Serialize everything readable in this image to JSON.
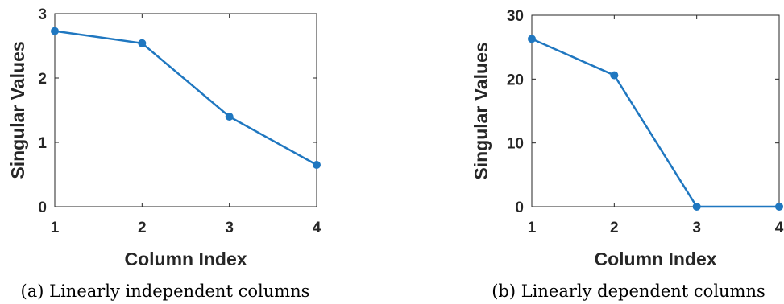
{
  "chart_data": [
    {
      "type": "line",
      "caption": "(a) Linearly independent columns",
      "xlabel": "Column Index",
      "ylabel": "Singular Values",
      "x": [
        1,
        2,
        3,
        4
      ],
      "series": [
        {
          "values": [
            2.73,
            2.54,
            1.4,
            0.65
          ]
        }
      ],
      "xlim": [
        1,
        4
      ],
      "ylim": [
        0,
        3
      ],
      "xticks": [
        "1",
        "2",
        "3",
        "4"
      ],
      "yticks": [
        "0",
        "1",
        "2",
        "3"
      ],
      "yticks_values": [
        0,
        1,
        2,
        3
      ],
      "grid": false,
      "markers": true,
      "color": "#1f77c0"
    },
    {
      "type": "line",
      "caption": "(b) Linearly dependent columns",
      "xlabel": "Column Index",
      "ylabel": "Singular Values",
      "x": [
        1,
        2,
        3,
        4
      ],
      "series": [
        {
          "values": [
            26.3,
            20.6,
            0,
            0
          ]
        }
      ],
      "xlim": [
        1,
        4
      ],
      "ylim": [
        0,
        30
      ],
      "xticks": [
        "1",
        "2",
        "3",
        "4"
      ],
      "yticks": [
        "0",
        "10",
        "20",
        "30"
      ],
      "yticks_values": [
        0,
        10,
        20,
        30
      ],
      "grid": false,
      "markers": true,
      "color": "#1f77c0"
    }
  ]
}
